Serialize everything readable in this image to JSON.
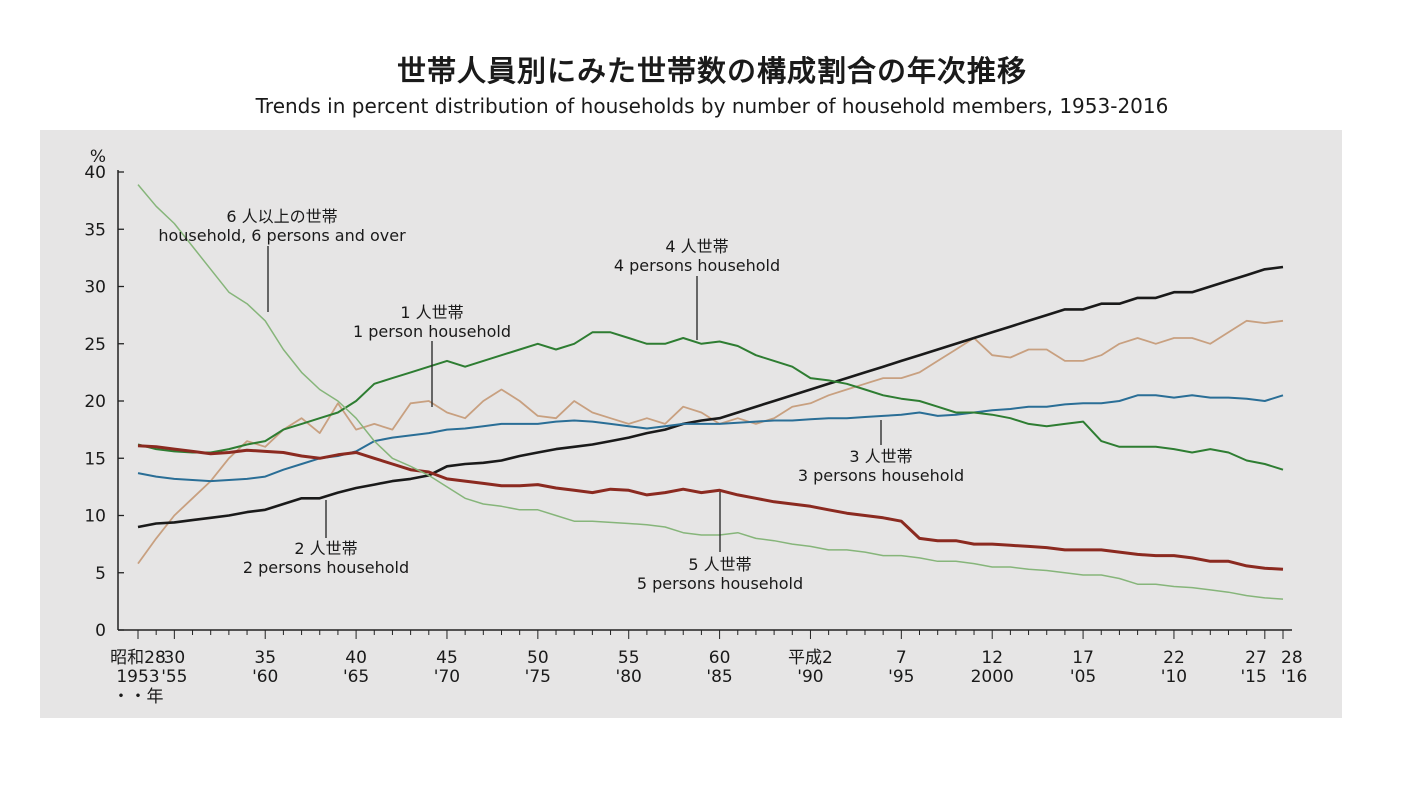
{
  "chart_data": {
    "type": "line",
    "title": "世帯人員別にみた世帯数の構成割合の年次推移",
    "subtitle": "Trends in percent distribution of households by number of household members, 1953-2016",
    "ylabel": "%",
    "ylim": [
      0,
      40
    ],
    "yticks": [
      "0",
      "5",
      "10",
      "15",
      "20",
      "25",
      "30",
      "35",
      "40"
    ],
    "xlim": [
      1953,
      2016
    ],
    "xtick_labels": [
      {
        "year": 1953,
        "era": "昭和28",
        "western": "1953"
      },
      {
        "year": 1955,
        "era": "30",
        "western": "'55"
      },
      {
        "year": 1960,
        "era": "35",
        "western": "'60"
      },
      {
        "year": 1965,
        "era": "40",
        "western": "'65"
      },
      {
        "year": 1970,
        "era": "45",
        "western": "'70"
      },
      {
        "year": 1975,
        "era": "50",
        "western": "'75"
      },
      {
        "year": 1980,
        "era": "55",
        "western": "'80"
      },
      {
        "year": 1985,
        "era": "60",
        "western": "'85"
      },
      {
        "year": 1990,
        "era": "平成2",
        "western": "'90"
      },
      {
        "year": 1995,
        "era": "7",
        "western": "'95"
      },
      {
        "year": 2000,
        "era": "12",
        "western": "2000"
      },
      {
        "year": 2005,
        "era": "17",
        "western": "'05"
      },
      {
        "year": 2010,
        "era": "22",
        "western": "'10"
      },
      {
        "year": 2015,
        "era": "27",
        "western": "'15"
      },
      {
        "year": 2016,
        "era": "28",
        "western": "'16"
      }
    ],
    "year_suffix": "・・年",
    "x": [
      1953,
      1954,
      1955,
      1956,
      1957,
      1958,
      1959,
      1960,
      1961,
      1962,
      1963,
      1964,
      1965,
      1966,
      1967,
      1968,
      1969,
      1970,
      1971,
      1972,
      1973,
      1974,
      1975,
      1976,
      1977,
      1978,
      1979,
      1980,
      1981,
      1982,
      1983,
      1984,
      1985,
      1986,
      1987,
      1988,
      1989,
      1990,
      1991,
      1992,
      1993,
      1994,
      1995,
      1996,
      1997,
      1998,
      1999,
      2000,
      2001,
      2002,
      2003,
      2004,
      2005,
      2006,
      2007,
      2008,
      2009,
      2010,
      2011,
      2012,
      2013,
      2014,
      2015,
      2016
    ],
    "series": [
      {
        "name": "1人世帯 1 person household",
        "color": "#c8a080",
        "values": [
          5.8,
          8.0,
          10.0,
          11.5,
          13.0,
          15.0,
          16.5,
          16.0,
          17.5,
          18.5,
          17.2,
          19.8,
          17.5,
          18.0,
          17.5,
          19.8,
          20.0,
          19.0,
          18.5,
          20.0,
          21.0,
          20.0,
          18.7,
          18.5,
          20.0,
          19.0,
          18.5,
          18.0,
          18.5,
          18.0,
          19.5,
          19.0,
          18.0,
          18.5,
          18.0,
          18.5,
          19.5,
          19.8,
          20.5,
          21.0,
          21.5,
          22.0,
          22.0,
          22.5,
          23.5,
          24.5,
          25.5,
          24.0,
          23.8,
          24.5,
          24.5,
          23.5,
          23.5,
          24.0,
          25.0,
          25.5,
          25.0,
          25.5,
          25.5,
          25.0,
          26.0,
          27.0,
          26.8,
          27.0
        ]
      },
      {
        "name": "2人世帯 2 persons household",
        "color": "#1a1a1a",
        "values": [
          9.0,
          9.3,
          9.4,
          9.6,
          9.8,
          10.0,
          10.3,
          10.5,
          11.0,
          11.5,
          11.5,
          12.0,
          12.4,
          12.7,
          13.0,
          13.2,
          13.5,
          14.3,
          14.5,
          14.6,
          14.8,
          15.2,
          15.5,
          15.8,
          16.0,
          16.2,
          16.5,
          16.8,
          17.2,
          17.5,
          18.0,
          18.3,
          18.5,
          19.0,
          19.5,
          20.0,
          20.5,
          21.0,
          21.5,
          22.0,
          22.5,
          23.0,
          23.5,
          24.0,
          24.5,
          25.0,
          25.5,
          26.0,
          26.5,
          27.0,
          27.5,
          28.0,
          28.0,
          28.5,
          28.5,
          29.0,
          29.0,
          29.5,
          29.5,
          30.0,
          30.5,
          31.0,
          31.5,
          31.7
        ]
      },
      {
        "name": "3人世帯 3 persons household",
        "color": "#2a6e96",
        "values": [
          13.7,
          13.4,
          13.2,
          13.1,
          13.0,
          13.1,
          13.2,
          13.4,
          14.0,
          14.5,
          15.0,
          15.2,
          15.6,
          16.5,
          16.8,
          17.0,
          17.2,
          17.5,
          17.6,
          17.8,
          18.0,
          18.0,
          18.0,
          18.2,
          18.3,
          18.2,
          18.0,
          17.8,
          17.6,
          17.8,
          18.0,
          18.0,
          18.0,
          18.1,
          18.2,
          18.3,
          18.3,
          18.4,
          18.5,
          18.5,
          18.6,
          18.7,
          18.8,
          19.0,
          18.7,
          18.8,
          19.0,
          19.2,
          19.3,
          19.5,
          19.5,
          19.7,
          19.8,
          19.8,
          20.0,
          20.5,
          20.5,
          20.3,
          20.5,
          20.3,
          20.3,
          20.2,
          20.0,
          20.5
        ]
      },
      {
        "name": "4人世帯 4 persons household",
        "color": "#2e7d32",
        "values": [
          16.2,
          15.8,
          15.6,
          15.5,
          15.5,
          15.8,
          16.2,
          16.5,
          17.5,
          18.0,
          18.5,
          19.0,
          20.0,
          21.5,
          22.0,
          22.5,
          23.0,
          23.5,
          23.0,
          23.5,
          24.0,
          24.5,
          25.0,
          24.5,
          25.0,
          26.0,
          26.0,
          25.5,
          25.0,
          25.0,
          25.5,
          25.0,
          25.2,
          24.8,
          24.0,
          23.5,
          23.0,
          22.0,
          21.8,
          21.5,
          21.0,
          20.5,
          20.2,
          20.0,
          19.5,
          19.0,
          19.0,
          18.8,
          18.5,
          18.0,
          17.8,
          18.0,
          18.2,
          16.5,
          16.0,
          16.0,
          16.0,
          15.8,
          15.5,
          15.8,
          15.5,
          14.8,
          14.5,
          14.0
        ]
      },
      {
        "name": "5人世帯 5 persons household",
        "color": "#8b2a20",
        "values": [
          16.1,
          16.0,
          15.8,
          15.6,
          15.4,
          15.5,
          15.7,
          15.6,
          15.5,
          15.2,
          15.0,
          15.3,
          15.5,
          15.0,
          14.5,
          14.0,
          13.8,
          13.2,
          13.0,
          12.8,
          12.6,
          12.6,
          12.7,
          12.4,
          12.2,
          12.0,
          12.3,
          12.2,
          11.8,
          12.0,
          12.3,
          12.0,
          12.2,
          11.8,
          11.5,
          11.2,
          11.0,
          10.8,
          10.5,
          10.2,
          10.0,
          9.8,
          9.5,
          8.0,
          7.8,
          7.8,
          7.5,
          7.5,
          7.4,
          7.3,
          7.2,
          7.0,
          7.0,
          7.0,
          6.8,
          6.6,
          6.5,
          6.5,
          6.3,
          6.0,
          6.0,
          5.6,
          5.4,
          5.3
        ]
      },
      {
        "name": "6人以上の世帯 household, 6 persons and over",
        "color": "#86b57a",
        "values": [
          38.9,
          37.0,
          35.5,
          33.5,
          31.5,
          29.5,
          28.5,
          27.0,
          24.5,
          22.5,
          21.0,
          20.0,
          18.5,
          16.5,
          15.0,
          14.3,
          13.5,
          12.5,
          11.5,
          11.0,
          10.8,
          10.5,
          10.5,
          10.0,
          9.5,
          9.5,
          9.4,
          9.3,
          9.2,
          9.0,
          8.5,
          8.3,
          8.3,
          8.5,
          8.0,
          7.8,
          7.5,
          7.3,
          7.0,
          7.0,
          6.8,
          6.5,
          6.5,
          6.3,
          6.0,
          6.0,
          5.8,
          5.5,
          5.5,
          5.3,
          5.2,
          5.0,
          4.8,
          4.8,
          4.5,
          4.0,
          4.0,
          3.8,
          3.7,
          3.5,
          3.3,
          3.0,
          2.8,
          2.7
        ]
      }
    ],
    "annotations": [
      {
        "ja": "6 人以上の世帯",
        "en": "household, 6 persons and over",
        "series_index": 5,
        "at_year": 1960
      },
      {
        "ja": "4 人世帯",
        "en": "4 persons household",
        "series_index": 3,
        "at_year": 1984
      },
      {
        "ja": "1 人世帯",
        "en": "1 person household",
        "series_index": 0,
        "at_year": 1969
      },
      {
        "ja": "3 人世帯",
        "en": "3 persons household",
        "series_index": 2,
        "at_year": 1994
      },
      {
        "ja": "2 人世帯",
        "en": "2 persons household",
        "series_index": 1,
        "at_year": 1963
      },
      {
        "ja": "5 人世帯",
        "en": "5 persons household",
        "series_index": 4,
        "at_year": 1985
      }
    ],
    "grid": false
  }
}
